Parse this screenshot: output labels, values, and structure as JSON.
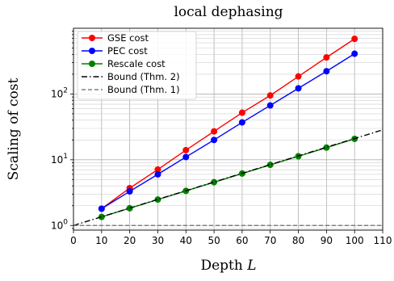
{
  "chart_data": {
    "type": "line",
    "title": "local dephasing",
    "xlabel": "Depth ",
    "xlabel_var": "L",
    "ylabel": "Scaling of cost",
    "xlim": [
      0,
      110
    ],
    "ylim": [
      0.85,
      1000
    ],
    "yscale": "log",
    "grid": true,
    "legend_position": "top-left",
    "x_ticks": [
      0,
      10,
      20,
      30,
      40,
      50,
      60,
      70,
      80,
      90,
      100,
      110
    ],
    "x_tick_labels": [
      "0",
      "10",
      "20",
      "30",
      "40",
      "50",
      "60",
      "70",
      "80",
      "90",
      "100",
      "110"
    ],
    "y_ticks": [
      1,
      10,
      100
    ],
    "y_tick_labels": [
      {
        "base": "10",
        "exp": "0"
      },
      {
        "base": "10",
        "exp": "1"
      },
      {
        "base": "10",
        "exp": "2"
      }
    ],
    "series": [
      {
        "name": "GSE cost",
        "color": "#ff0000",
        "style": "solid",
        "marker": "circle",
        "x": [
          10,
          20,
          30,
          40,
          50,
          60,
          70,
          80,
          90,
          100
        ],
        "y": [
          1.8,
          3.7,
          7.1,
          14,
          27,
          52,
          95,
          185,
          360,
          690
        ]
      },
      {
        "name": "PEC cost",
        "color": "#0000ff",
        "style": "solid",
        "marker": "circle",
        "x": [
          10,
          20,
          30,
          40,
          50,
          60,
          70,
          80,
          90,
          100
        ],
        "y": [
          1.8,
          3.3,
          6.0,
          11,
          20,
          37,
          67,
          122,
          222,
          410
        ]
      },
      {
        "name": "Rescale cost",
        "color": "#008000",
        "style": "solid",
        "marker": "circle",
        "x": [
          10,
          20,
          30,
          40,
          50,
          60,
          70,
          80,
          90,
          100
        ],
        "y": [
          1.35,
          1.83,
          2.48,
          3.36,
          4.55,
          6.17,
          8.36,
          11.3,
          15.3,
          20.8
        ]
      },
      {
        "name": "Bound (Thm. 2)",
        "color": "#000000",
        "style": "dashdot",
        "marker": "none",
        "x": [
          0,
          110
        ],
        "y": [
          1.0,
          28.5
        ]
      },
      {
        "name": "Bound (Thm. 1)",
        "color": "#808080",
        "style": "dashed",
        "marker": "none",
        "x": [
          0,
          110
        ],
        "y": [
          1.0,
          1.0
        ]
      }
    ]
  }
}
